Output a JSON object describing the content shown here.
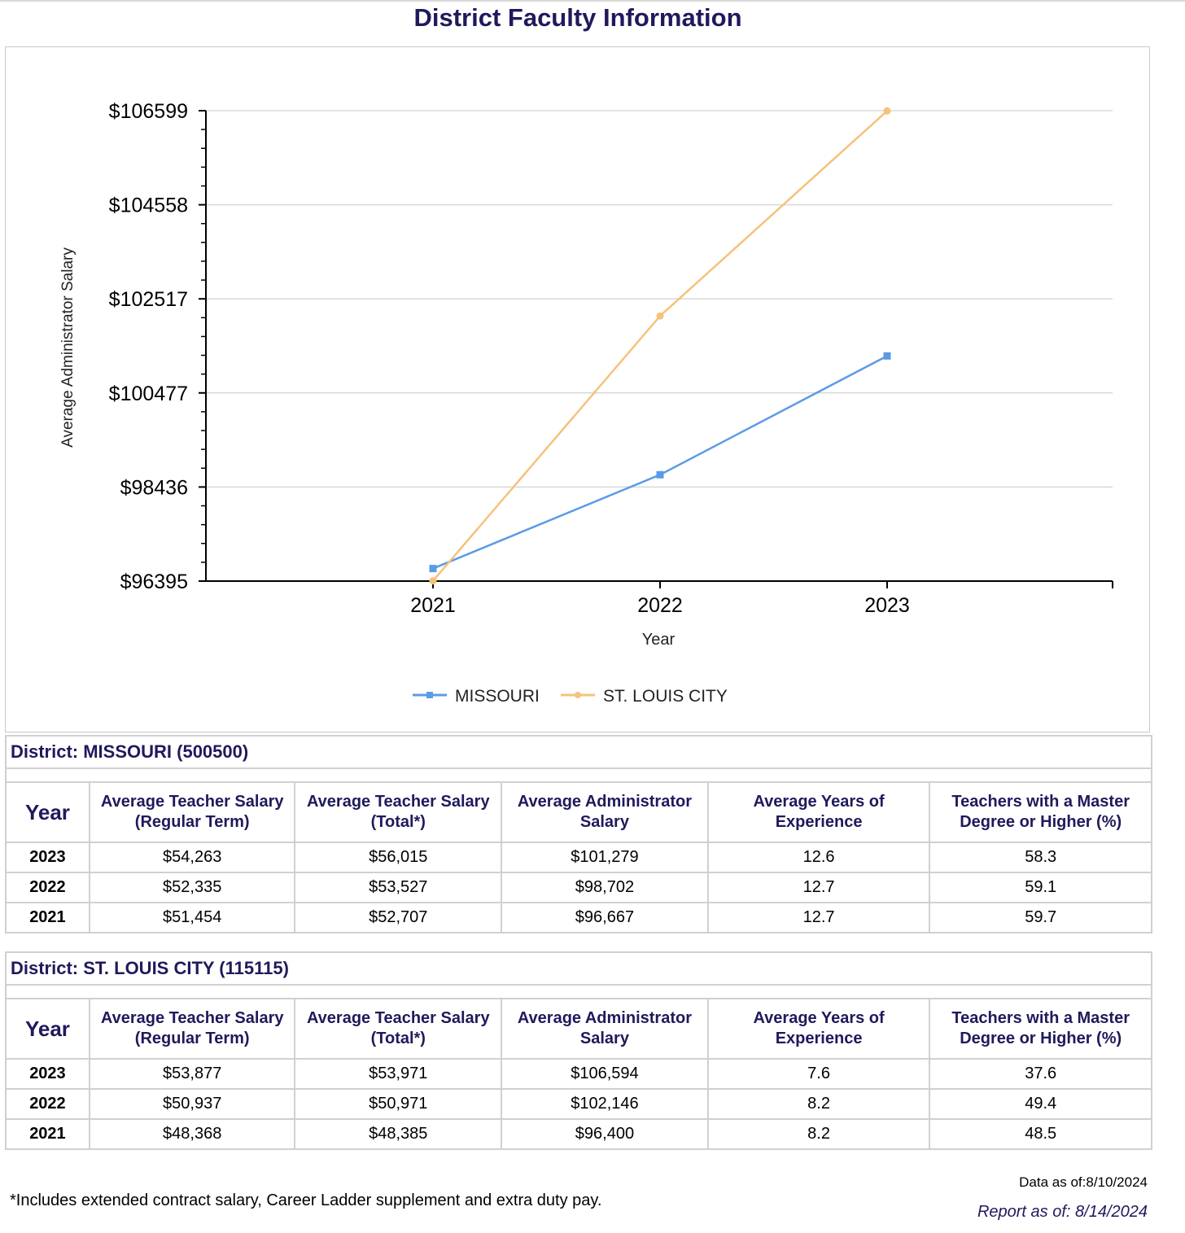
{
  "page": {
    "title": "District Faculty Information"
  },
  "chart_data": {
    "type": "line",
    "title": "",
    "xlabel": "Year",
    "ylabel": "Average Administrator Salary",
    "x": [
      "2021",
      "2022",
      "2023"
    ],
    "ylim": [
      96395,
      106599
    ],
    "yticks": [
      96395,
      98436,
      100477,
      102517,
      104558,
      106599
    ],
    "ytick_labels": [
      "$96395",
      "$98436",
      "$100477",
      "$102517",
      "$104558",
      "$106599"
    ],
    "grid": true,
    "legend_position": "bottom",
    "series": [
      {
        "name": "MISSOURI",
        "values": [
          96667,
          98702,
          101279
        ],
        "color": "#5b9be6",
        "marker": "square"
      },
      {
        "name": "ST. LOUIS CITY",
        "values": [
          96400,
          102146,
          106594
        ],
        "color": "#f5c27a",
        "marker": "circle"
      }
    ]
  },
  "columns": {
    "year": "Year",
    "teacher_regular": [
      "Average Teacher Salary",
      "(Regular Term)"
    ],
    "teacher_total": [
      "Average Teacher Salary",
      "(Total*)"
    ],
    "admin": [
      "Average Administrator",
      "Salary"
    ],
    "experience": [
      "Average Years of",
      "Experience"
    ],
    "masters": [
      "Teachers with a Master",
      "Degree or Higher (%)"
    ]
  },
  "districts": [
    {
      "title": "District: MISSOURI (500500)",
      "rows": [
        {
          "year": "2023",
          "teacher_regular": "$54,263",
          "teacher_total": "$56,015",
          "admin": "$101,279",
          "experience": "12.6",
          "masters": "58.3"
        },
        {
          "year": "2022",
          "teacher_regular": "$52,335",
          "teacher_total": "$53,527",
          "admin": "$98,702",
          "experience": "12.7",
          "masters": "59.1"
        },
        {
          "year": "2021",
          "teacher_regular": "$51,454",
          "teacher_total": "$52,707",
          "admin": "$96,667",
          "experience": "12.7",
          "masters": "59.7"
        }
      ]
    },
    {
      "title": "District: ST. LOUIS CITY (115115)",
      "rows": [
        {
          "year": "2023",
          "teacher_regular": "$53,877",
          "teacher_total": "$53,971",
          "admin": "$106,594",
          "experience": "7.6",
          "masters": "37.6"
        },
        {
          "year": "2022",
          "teacher_regular": "$50,937",
          "teacher_total": "$50,971",
          "admin": "$102,146",
          "experience": "8.2",
          "masters": "49.4"
        },
        {
          "year": "2021",
          "teacher_regular": "$48,368",
          "teacher_total": "$48,385",
          "admin": "$96,400",
          "experience": "8.2",
          "masters": "48.5"
        }
      ]
    }
  ],
  "footer": {
    "footnote": "*Includes extended contract salary, Career Ladder supplement and extra duty pay.",
    "data_asof": "Data as of:8/10/2024",
    "report_asof": "Report as of: 8/14/2024"
  }
}
